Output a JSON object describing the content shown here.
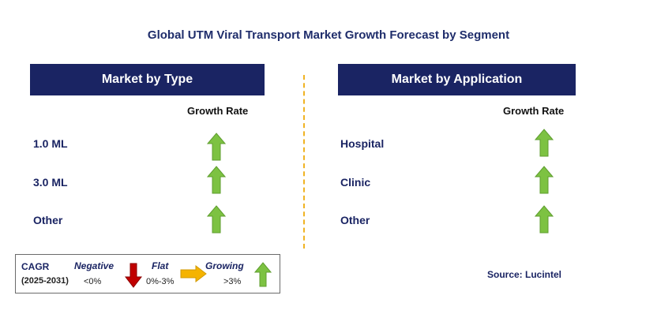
{
  "title": "Global UTM Viral Transport Market Growth Forecast by Segment",
  "growth_rate_label": "Growth Rate",
  "panels": [
    {
      "header": "Market by Type",
      "rows": [
        {
          "label": "1.0 ML",
          "trend": "growing"
        },
        {
          "label": "3.0 ML",
          "trend": "growing"
        },
        {
          "label": "Other",
          "trend": "growing"
        }
      ]
    },
    {
      "header": "Market by Application",
      "rows": [
        {
          "label": "Hospital",
          "trend": "growing"
        },
        {
          "label": "Clinic",
          "trend": "growing"
        },
        {
          "label": "Other",
          "trend": "growing"
        }
      ]
    }
  ],
  "legend": {
    "cagr": "CAGR",
    "period": "(2025-2031)",
    "negative": {
      "label": "Negative",
      "range": "<0%"
    },
    "flat": {
      "label": "Flat",
      "range": "0%-3%"
    },
    "growing": {
      "label": "Growing",
      "range": ">3%"
    }
  },
  "source": "Source: Lucintel",
  "colors": {
    "header_bg": "#1a2463",
    "growing": "#7dc242",
    "negative": "#c00000",
    "flat": "#f5b300",
    "divider": "#f0b323"
  }
}
